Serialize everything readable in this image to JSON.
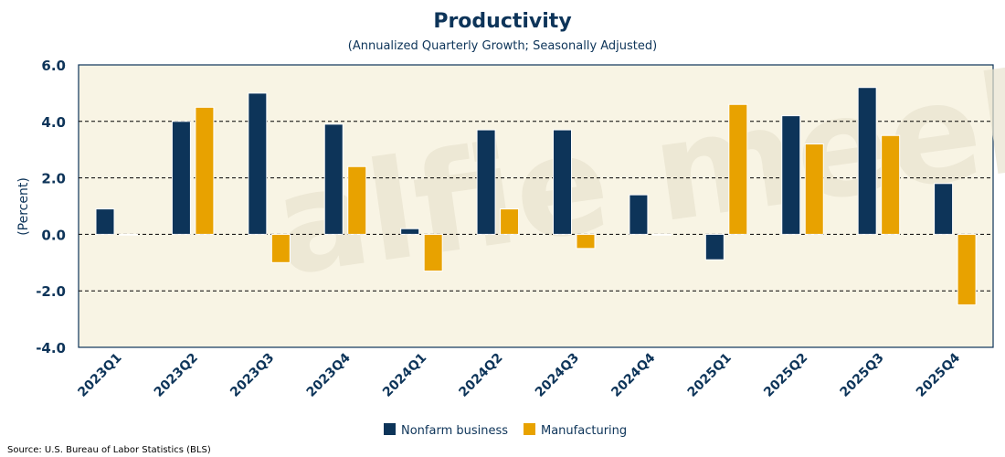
{
  "watermark": "alfie meek",
  "chart_data": {
    "type": "bar",
    "title": "Productivity",
    "subtitle": "(Annualized Quarterly Growth; Seasonally Adjusted)",
    "ylabel": "(Percent)",
    "xlabel": "",
    "ylim": [
      -4.0,
      6.0
    ],
    "yticks": [
      "6.0",
      "4.0",
      "2.0",
      "0.0",
      "-2.0",
      "-4.0"
    ],
    "ytick_values": [
      6,
      4,
      2,
      0,
      -2,
      -4
    ],
    "grid": "horizontal dashed",
    "legend_position": "bottom-center",
    "categories": [
      "2023Q1",
      "2023Q2",
      "2023Q3",
      "2023Q4",
      "2024Q1",
      "2024Q2",
      "2024Q3",
      "2024Q4",
      "2025Q1",
      "2025Q2",
      "2025Q3",
      "2025Q4"
    ],
    "series": [
      {
        "name": "Nonfarm business",
        "color": "#0d3459",
        "values": [
          0.9,
          4.0,
          5.0,
          3.9,
          0.2,
          3.7,
          3.7,
          1.4,
          -0.9,
          4.2,
          5.2,
          1.8
        ]
      },
      {
        "name": "Manufacturing",
        "color": "#e8a200",
        "values": [
          0.0,
          4.5,
          -1.0,
          2.4,
          -1.3,
          0.9,
          -0.5,
          0.0,
          4.6,
          3.2,
          3.5,
          -2.5
        ]
      }
    ],
    "source": "Source: U.S. Bureau of Labor Statistics (BLS)"
  }
}
